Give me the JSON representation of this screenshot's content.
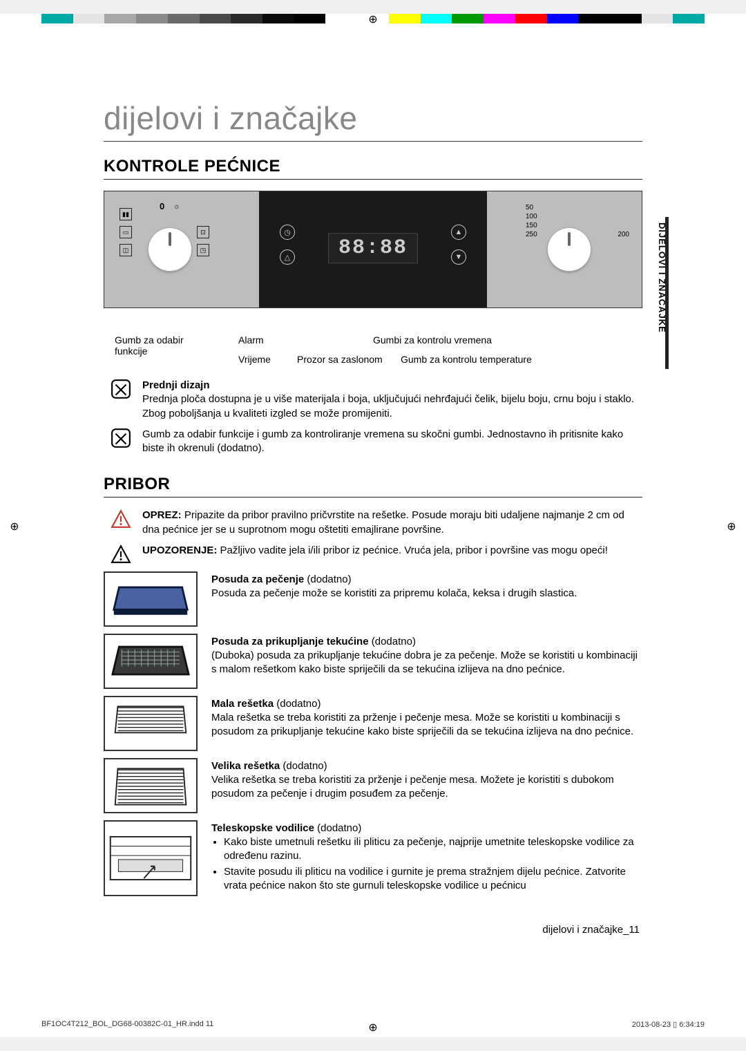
{
  "colorbar": {
    "colors": [
      "#00a9a4",
      "#e4e4e4",
      "#a8a8a8",
      "#8a8a8a",
      "#6a6a6a",
      "#4a4a4a",
      "#2a2a2a",
      "#0a0a0a",
      "#000000",
      "#ffffff",
      "#ffffff",
      "#ffff00",
      "#00ffff",
      "#009900",
      "#ff00ff",
      "#ff0000",
      "#0000ff",
      "#000000",
      "#000000",
      "#e4e4e4",
      "#00a9a4"
    ]
  },
  "page_title": "dijelovi i značajke",
  "section1": "KONTROLE PEĆNICE",
  "panel": {
    "zero": "0",
    "display": "88:88",
    "temp": {
      "t50": "50",
      "t100": "100",
      "t150": "150",
      "t200": "200",
      "t250": "250"
    },
    "labels": {
      "func": "Gumb za odabir\nfunkcije",
      "alarm": "Alarm",
      "time": "Vrijeme",
      "screen": "Prozor sa zaslonom",
      "tctrl": "Gumbi za kontrolu vremena",
      "temp": "Gumb za kontrolu temperature"
    }
  },
  "side_tab": "DIJELOVI I ZNAČAJKE",
  "notes": {
    "design_title": "Prednji dizajn",
    "design_body": "Prednja ploča dostupna je u više materijala i boja, uključujući nehrđajući čelik, bijelu boju, crnu boju i staklo. Zbog poboljšanja u kvaliteti izgled se može promijeniti.",
    "knobs_body": "Gumb za odabir funkcije i gumb za kontroliranje vremena su skočni gumbi. Jednostavno ih pritisnite kako biste ih okrenuli (dodatno).",
    "oprez_lead": "OPREZ:",
    "oprez_body": " Pripazite da pribor pravilno pričvrstite na rešetke. Posude moraju biti udaljene najmanje 2 cm od dna pećnice jer se u suprotnom mogu oštetiti emajlirane površine.",
    "warn_lead": "UPOZORENJE:",
    "warn_body": " Pažljivo vadite jela i/ili pribor iz pećnice. Vruća jela, pribor i površine vas mogu opeći!"
  },
  "section2": "PRIBOR",
  "accessories": [
    {
      "thumb": {
        "type": "flat_tray",
        "fill": "#4a62a3",
        "stroke": "#0c1a3a"
      },
      "title": "Posuda za pečenje",
      "suffix": " (dodatno)",
      "body": "Posuda za pečenje može se koristiti za pripremu kolača, keksa i drugih slastica."
    },
    {
      "thumb": {
        "type": "deep_tray",
        "fill": "#3a3a3a",
        "stroke": "#111",
        "grid": true,
        "grid_color": "#9aa"
      },
      "title": "Posuda za prikupljanje tekućine",
      "suffix": " (dodatno)",
      "body": "(Duboka) posuda za prikupljanje tekućine dobra je za pečenje. Može se koristiti u kombinaciji s malom rešetkom kako biste spriječili da se tekućina izlijeva na dno pećnice."
    },
    {
      "thumb": {
        "type": "small_grid",
        "stroke": "#222"
      },
      "title": "Mala rešetka",
      "suffix": " (dodatno)",
      "body": "Mala rešetka se treba koristiti za prženje i pečenje mesa. Može se koristiti u kombinaciji s posudom za prikupljanje tekućine kako biste spriječili da se tekućina izlijeva na dno pećnice."
    },
    {
      "thumb": {
        "type": "large_grid",
        "stroke": "#222"
      },
      "title": "Velika rešetka",
      "suffix": " (dodatno)",
      "body": "Velika rešetka se treba koristiti za prženje i pečenje mesa. Možete je koristiti s dubokom posudom za pečenje i drugim posuđem za pečenje."
    },
    {
      "thumb": {
        "type": "rails",
        "stroke": "#222"
      },
      "title": "Teleskopske vodilice",
      "suffix": " (dodatno)",
      "bullets": [
        "Kako biste umetnuli rešetku ili pliticu za pečenje, najprije umetnite teleskopske vodilice za određenu razinu.",
        "Stavite posudu ili pliticu na vodilice i gurnite je prema stražnjem dijelu pećnice. Zatvorite vrata pećnice nakon što ste gurnuli teleskopske vodilice u pećnicu"
      ]
    }
  ],
  "footer_right": "dijelovi i značajke_11",
  "print": {
    "left": "BF1OC4T212_BOL_DG68-00382C-01_HR.indd   11",
    "right": "2013-08-23   ▯ 6:34:19"
  }
}
